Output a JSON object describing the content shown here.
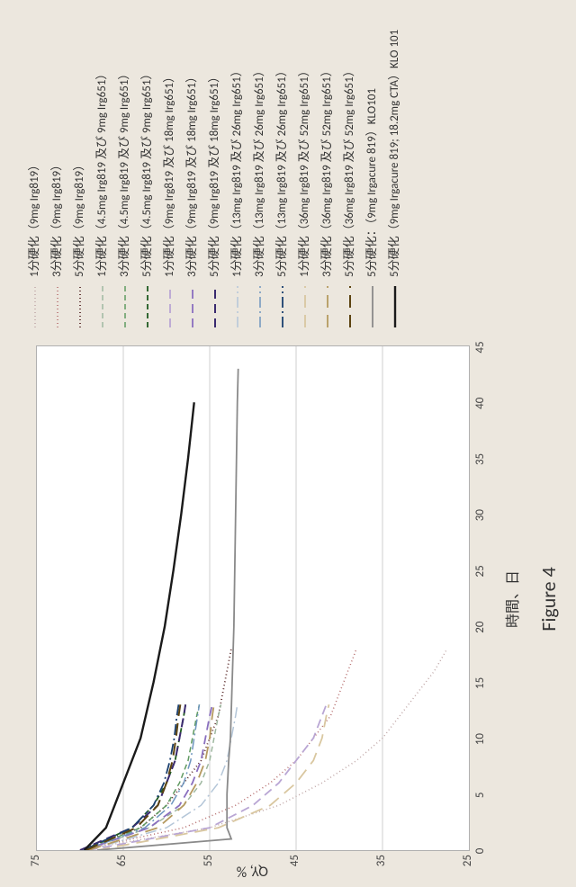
{
  "figure_caption": "Figure 4",
  "x_axis": {
    "label": "時間、日",
    "min": 0,
    "max": 45,
    "tick_step": 5,
    "label_fontsize": 16,
    "tick_fontsize": 13
  },
  "y_axis": {
    "label": "QY, %",
    "min": 25,
    "max": 75,
    "tick_step": 10,
    "label_fontsize": 16,
    "tick_fontsize": 13
  },
  "plot": {
    "background_color": "#ffffff",
    "border_color": "#b0b0b0",
    "grid_color": "#cfcfcf",
    "gridlines_horizontal": true,
    "gridlines_vertical": false
  },
  "page_background": "#ece7de",
  "series": [
    {
      "label": "1分硬化（9mg Irg819）",
      "color": "#bfa6a6",
      "dash": "1 3",
      "width": 1.5,
      "data": [
        [
          0,
          70
        ],
        [
          2,
          55
        ],
        [
          4,
          47
        ],
        [
          6,
          42
        ],
        [
          8,
          38
        ],
        [
          10,
          35
        ],
        [
          12,
          33
        ],
        [
          14,
          31
        ],
        [
          16,
          29
        ],
        [
          18,
          27.5
        ]
      ]
    },
    {
      "label": "3分硬化（9mg Irg819）",
      "color": "#b46b6b",
      "dash": "1 3",
      "width": 1.5,
      "data": [
        [
          0,
          70
        ],
        [
          2,
          58
        ],
        [
          4,
          52
        ],
        [
          6,
          48
        ],
        [
          8,
          45
        ],
        [
          10,
          43
        ],
        [
          12,
          41
        ],
        [
          14,
          40
        ],
        [
          16,
          39
        ],
        [
          18,
          38
        ]
      ]
    },
    {
      "label": "5分硬化（9mg Irg819）",
      "color": "#5a2a2a",
      "dash": "1 3",
      "width": 1.8,
      "data": [
        [
          0,
          70
        ],
        [
          2,
          63
        ],
        [
          4,
          60
        ],
        [
          6,
          58
        ],
        [
          8,
          56
        ],
        [
          10,
          55
        ],
        [
          12,
          54
        ],
        [
          14,
          53.5
        ],
        [
          16,
          53
        ],
        [
          18,
          52.5
        ]
      ]
    },
    {
      "label": "1分硬化（4.5mg Irg819 及び 9mg Irg651）",
      "color": "#9fb8a0",
      "dash": "6 4",
      "width": 1.5,
      "data": [
        [
          0,
          69.5
        ],
        [
          2,
          62
        ],
        [
          4,
          58
        ],
        [
          6,
          56
        ],
        [
          8,
          55
        ],
        [
          10,
          54.5
        ],
        [
          12,
          54
        ],
        [
          13,
          53.7
        ]
      ]
    },
    {
      "label": "3分硬化（4.5mg Irg819 及び 9mg Irg651）",
      "color": "#5f9a61",
      "dash": "6 4",
      "width": 1.5,
      "data": [
        [
          0,
          69.5
        ],
        [
          2,
          63
        ],
        [
          4,
          60
        ],
        [
          6,
          58.5
        ],
        [
          8,
          57.5
        ],
        [
          10,
          57
        ],
        [
          12,
          56.5
        ],
        [
          13,
          56.2
        ]
      ]
    },
    {
      "label": "5分硬化（4.5mg Irg819 及び 9mg Irg651）",
      "color": "#1f5a20",
      "dash": "6 4",
      "width": 1.8,
      "data": [
        [
          0,
          69.6
        ],
        [
          2,
          64
        ],
        [
          4,
          61.5
        ],
        [
          6,
          60
        ],
        [
          8,
          59
        ],
        [
          10,
          58.5
        ],
        [
          12,
          58
        ],
        [
          13,
          57.8
        ]
      ]
    },
    {
      "label": "1分硬化（9mg Irg819 及び 18mg Irg651）",
      "color": "#b9a6d4",
      "dash": "10 6",
      "width": 1.8,
      "data": [
        [
          0,
          69
        ],
        [
          2,
          55
        ],
        [
          4,
          50
        ],
        [
          6,
          47
        ],
        [
          8,
          45
        ],
        [
          9,
          44
        ],
        [
          10,
          43
        ],
        [
          12,
          42
        ],
        [
          13,
          41.5
        ]
      ]
    },
    {
      "label": "3分硬化（9mg Irg819 及び 18mg Irg651）",
      "color": "#8a6fbf",
      "dash": "10 6",
      "width": 1.8,
      "data": [
        [
          0,
          69.5
        ],
        [
          2,
          62
        ],
        [
          4,
          58.5
        ],
        [
          6,
          57
        ],
        [
          8,
          56
        ],
        [
          10,
          55.5
        ],
        [
          12,
          55
        ],
        [
          13,
          54.7
        ]
      ]
    },
    {
      "label": "5分硬化（9mg Irg819 及び 18mg Irg651）",
      "color": "#3a2a6f",
      "dash": "10 6",
      "width": 2,
      "data": [
        [
          0,
          70
        ],
        [
          2,
          64
        ],
        [
          4,
          61
        ],
        [
          6,
          60
        ],
        [
          8,
          59
        ],
        [
          10,
          58.5
        ],
        [
          12,
          58
        ],
        [
          13,
          57.8
        ]
      ]
    },
    {
      "label": "1分硬化（13mg Irg819 及び 26mg Irg651）",
      "color": "#b4c6d8",
      "dash": "12 4 2 4",
      "width": 1.5,
      "data": [
        [
          0,
          69
        ],
        [
          2,
          60
        ],
        [
          4,
          56
        ],
        [
          6,
          54
        ],
        [
          8,
          53
        ],
        [
          10,
          52.5
        ],
        [
          12,
          52
        ],
        [
          13,
          51.8
        ]
      ]
    },
    {
      "label": "3分硬化（13mg Irg819 及び 26mg Irg651）",
      "color": "#6f96bf",
      "dash": "12 4 2 4",
      "width": 1.5,
      "data": [
        [
          0,
          69.4
        ],
        [
          2,
          62.5
        ],
        [
          4,
          59.5
        ],
        [
          6,
          58
        ],
        [
          8,
          57.2
        ],
        [
          10,
          56.8
        ],
        [
          12,
          56.4
        ],
        [
          13,
          56.2
        ]
      ]
    },
    {
      "label": "5分硬化（13mg Irg819 及び 26mg Irg651）",
      "color": "#1a3f6e",
      "dash": "12 4 2 4",
      "width": 1.8,
      "data": [
        [
          0,
          69.6
        ],
        [
          2,
          64
        ],
        [
          4,
          61.5
        ],
        [
          6,
          60.3
        ],
        [
          8,
          59.6
        ],
        [
          10,
          59.1
        ],
        [
          12,
          58.8
        ],
        [
          13,
          58.6
        ]
      ]
    },
    {
      "label": "1分硬化（36mg Irg819 及び 52mg Irg651）",
      "color": "#d9c7a0",
      "dash": "14 8",
      "width": 1.8,
      "data": [
        [
          0,
          68
        ],
        [
          2,
          54
        ],
        [
          4,
          48
        ],
        [
          6,
          45
        ],
        [
          8,
          43
        ],
        [
          10,
          42
        ],
        [
          12,
          41.5
        ],
        [
          13,
          41.2
        ]
      ]
    },
    {
      "label": "3分硬化（36mg Irg819 及び 52mg Irg651）",
      "color": "#b59a60",
      "dash": "14 8",
      "width": 1.8,
      "data": [
        [
          0,
          69
        ],
        [
          2,
          61
        ],
        [
          4,
          58
        ],
        [
          6,
          56.5
        ],
        [
          8,
          55.5
        ],
        [
          10,
          55
        ],
        [
          12,
          54.7
        ],
        [
          13,
          54.5
        ]
      ]
    },
    {
      "label": "5分硬化（36mg Irg819 及び 52mg Irg651）",
      "color": "#5c4310",
      "dash": "14 8",
      "width": 2,
      "data": [
        [
          0,
          69.3
        ],
        [
          2,
          63.5
        ],
        [
          4,
          61
        ],
        [
          6,
          60
        ],
        [
          8,
          59.3
        ],
        [
          10,
          58.9
        ],
        [
          12,
          58.6
        ],
        [
          13,
          58.4
        ]
      ]
    },
    {
      "label": "5分硬化：（9mg Irgacure 819）KLO101",
      "color": "#8a8a8a",
      "dash": "",
      "width": 1.8,
      "data": [
        [
          0,
          68
        ],
        [
          1,
          52.5
        ],
        [
          2,
          53
        ],
        [
          5,
          53
        ],
        [
          8,
          52.8
        ],
        [
          10,
          52.6
        ],
        [
          20,
          52.2
        ],
        [
          30,
          52
        ],
        [
          40,
          51.8
        ],
        [
          43,
          51.7
        ]
      ]
    },
    {
      "label": "5分硬化（9mg Irgacure 819; 18.2mg CTA）KLO 101",
      "color": "#1a1a1a",
      "dash": "",
      "width": 2.4,
      "data": [
        [
          0,
          69.5
        ],
        [
          2,
          67
        ],
        [
          5,
          65.5
        ],
        [
          10,
          63
        ],
        [
          15,
          61.5
        ],
        [
          20,
          60.2
        ],
        [
          25,
          59.2
        ],
        [
          30,
          58.3
        ],
        [
          35,
          57.5
        ],
        [
          40,
          56.8
        ]
      ]
    }
  ]
}
